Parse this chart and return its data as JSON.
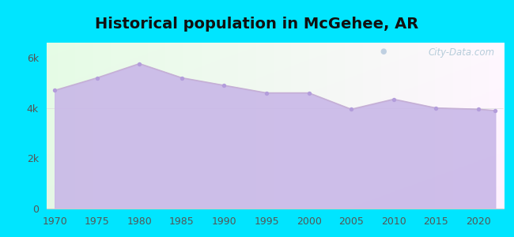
{
  "title": "Historical population in McGehee, AR",
  "years": [
    1970,
    1975,
    1980,
    1985,
    1990,
    1995,
    2000,
    2005,
    2010,
    2015,
    2020,
    2022
  ],
  "population": [
    4700,
    5200,
    5765,
    5200,
    4900,
    4600,
    4600,
    3950,
    4350,
    4000,
    3950,
    3900
  ],
  "line_color": "#c5b0d5",
  "fill_color": "#c9b8e8",
  "marker_color": "#b39ddb",
  "background_outer": "#00e5ff",
  "ytick_labels": [
    "0",
    "2k",
    "4k",
    "6k"
  ],
  "ytick_values": [
    0,
    2000,
    4000,
    6000
  ],
  "ylim": [
    0,
    6600
  ],
  "xlim": [
    1969,
    2023
  ],
  "title_fontsize": 14,
  "watermark_text": "City-Data.com"
}
